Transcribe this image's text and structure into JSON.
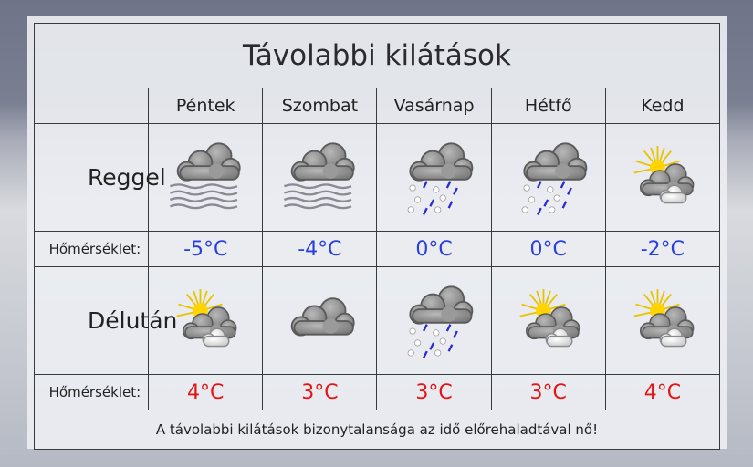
{
  "title": "Távolabbi kilátások",
  "days": [
    "Péntek",
    "Szombat",
    "Vasárnap",
    "Hétfő",
    "Kedd"
  ],
  "rows": [
    {
      "label": "Reggel",
      "temp_label": "Hőmérséklet:",
      "icons": [
        "fog-cloud-icon",
        "fog-cloud-icon",
        "sleet-icon",
        "sleet-icon",
        "partly-sunny-icon"
      ],
      "temps": [
        "-5°C",
        "-4°C",
        "0°C",
        "0°C",
        "-2°C"
      ],
      "temp_color": "#2a3fe0"
    },
    {
      "label": "Délután",
      "temp_label": "Hőmérséklet:",
      "icons": [
        "partly-sunny-icon",
        "cloudy-icon",
        "sleet-icon",
        "partly-sunny-icon",
        "partly-sunny-icon"
      ],
      "temps": [
        "4°C",
        "3°C",
        "3°C",
        "3°C",
        "4°C"
      ],
      "temp_color": "#e41414"
    }
  ],
  "footer": "A távolabbi kilátások bizonytalansága az idő előrehaladtával nő!"
}
